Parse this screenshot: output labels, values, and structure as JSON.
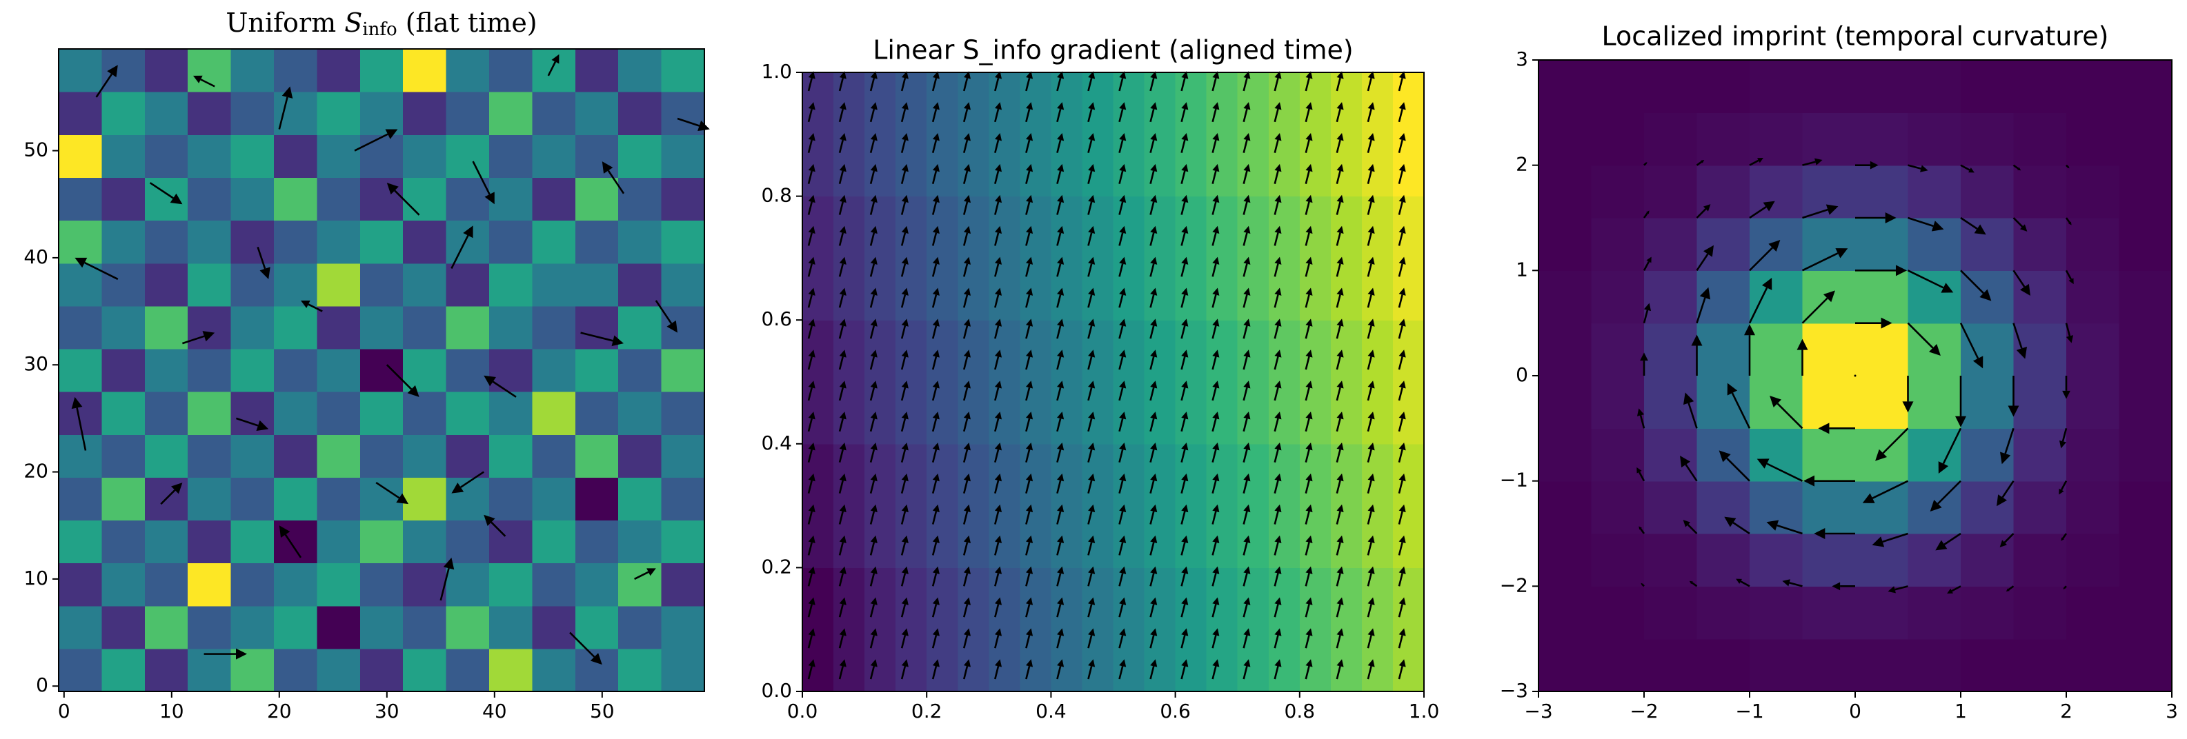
{
  "chart_data": [
    {
      "type": "heatmap",
      "colormap": "viridis",
      "origin": "lower",
      "title": {
        "text": "Uniform ",
        "math": "S",
        "subscript": "info",
        "after": " (flat time)"
      },
      "xlim": [
        -0.5,
        59.5
      ],
      "ylim": [
        -0.5,
        59.5
      ],
      "xticks": [
        0,
        10,
        20,
        30,
        40,
        50
      ],
      "yticks": [
        0,
        10,
        20,
        30,
        40,
        50
      ],
      "z": [
        [
          0.4,
          0.6,
          0.3,
          0.5,
          0.7,
          0.4,
          0.5,
          0.3,
          0.6,
          0.4,
          0.8,
          0.5,
          0.4,
          0.6,
          0.5
        ],
        [
          0.5,
          0.3,
          0.7,
          0.4,
          0.5,
          0.6,
          0.2,
          0.5,
          0.4,
          0.7,
          0.5,
          0.3,
          0.6,
          0.4,
          0.5
        ],
        [
          0.3,
          0.5,
          0.4,
          0.9,
          0.4,
          0.5,
          0.6,
          0.4,
          0.3,
          0.5,
          0.6,
          0.4,
          0.5,
          0.7,
          0.3
        ],
        [
          0.6,
          0.4,
          0.5,
          0.3,
          0.6,
          0.2,
          0.5,
          0.7,
          0.5,
          0.4,
          0.3,
          0.6,
          0.4,
          0.5,
          0.6
        ],
        [
          0.4,
          0.7,
          0.3,
          0.5,
          0.4,
          0.6,
          0.4,
          0.5,
          0.8,
          0.5,
          0.4,
          0.5,
          0.2,
          0.6,
          0.4
        ],
        [
          0.5,
          0.4,
          0.6,
          0.4,
          0.5,
          0.3,
          0.7,
          0.4,
          0.5,
          0.3,
          0.6,
          0.4,
          0.7,
          0.3,
          0.5
        ],
        [
          0.3,
          0.6,
          0.4,
          0.7,
          0.3,
          0.5,
          0.4,
          0.6,
          0.4,
          0.6,
          0.5,
          0.8,
          0.4,
          0.5,
          0.4
        ],
        [
          0.6,
          0.3,
          0.5,
          0.4,
          0.6,
          0.4,
          0.5,
          0.2,
          0.6,
          0.4,
          0.3,
          0.5,
          0.6,
          0.4,
          0.7
        ],
        [
          0.4,
          0.5,
          0.7,
          0.3,
          0.5,
          0.6,
          0.3,
          0.5,
          0.4,
          0.7,
          0.5,
          0.4,
          0.3,
          0.6,
          0.4
        ],
        [
          0.5,
          0.4,
          0.3,
          0.6,
          0.4,
          0.5,
          0.8,
          0.4,
          0.5,
          0.3,
          0.6,
          0.5,
          0.5,
          0.3,
          0.5
        ],
        [
          0.7,
          0.5,
          0.4,
          0.5,
          0.3,
          0.4,
          0.5,
          0.6,
          0.3,
          0.5,
          0.4,
          0.6,
          0.4,
          0.5,
          0.6
        ],
        [
          0.4,
          0.3,
          0.6,
          0.4,
          0.5,
          0.7,
          0.4,
          0.3,
          0.6,
          0.4,
          0.5,
          0.3,
          0.7,
          0.4,
          0.3
        ],
        [
          0.9,
          0.5,
          0.4,
          0.5,
          0.6,
          0.3,
          0.5,
          0.4,
          0.5,
          0.6,
          0.4,
          0.5,
          0.4,
          0.6,
          0.5
        ],
        [
          0.3,
          0.6,
          0.5,
          0.3,
          0.4,
          0.5,
          0.6,
          0.5,
          0.3,
          0.4,
          0.7,
          0.4,
          0.5,
          0.3,
          0.4
        ],
        [
          0.5,
          0.4,
          0.3,
          0.7,
          0.5,
          0.4,
          0.3,
          0.6,
          0.9,
          0.5,
          0.4,
          0.6,
          0.3,
          0.5,
          0.6
        ]
      ],
      "quiver": {
        "color": "#000000",
        "x": [
          3,
          8,
          14,
          20,
          27,
          33,
          38,
          45,
          52,
          57,
          5,
          11,
          18,
          24,
          30,
          36,
          42,
          48,
          55,
          2,
          9,
          16,
          22,
          29,
          35,
          41,
          47,
          53,
          13,
          39
        ],
        "y": [
          55,
          47,
          56,
          52,
          50,
          44,
          49,
          57,
          46,
          53,
          38,
          32,
          41,
          35,
          30,
          39,
          27,
          33,
          36,
          22,
          17,
          25,
          12,
          19,
          8,
          14,
          5,
          10,
          3,
          20
        ],
        "u": [
          2,
          3,
          -2,
          1,
          4,
          -3,
          2,
          1,
          -2,
          3,
          -4,
          3,
          1,
          -2,
          3,
          2,
          -3,
          4,
          2,
          -1,
          2,
          3,
          -2,
          3,
          1,
          -2,
          3,
          2,
          4,
          -3
        ],
        "v": [
          3,
          -2,
          1,
          4,
          2,
          3,
          -4,
          2,
          3,
          -1,
          2,
          1,
          -3,
          1,
          -3,
          4,
          2,
          -1,
          -3,
          5,
          2,
          -1,
          3,
          -2,
          4,
          2,
          -3,
          1,
          0,
          -2
        ]
      }
    },
    {
      "type": "heatmap",
      "colormap": "viridis",
      "origin": "lower",
      "title": "Linear S_info gradient (aligned time)",
      "xlim": [
        0,
        1
      ],
      "ylim": [
        0,
        1
      ],
      "xticks": [
        {
          "value": 0,
          "label": "0.0"
        },
        0.2,
        0.4,
        0.6,
        0.8,
        {
          "value": 1,
          "label": "1.0"
        }
      ],
      "yticks": [
        {
          "value": 0,
          "label": "0.0"
        },
        0.2,
        0.4,
        0.6,
        0.8,
        {
          "value": 1,
          "label": "1.0"
        }
      ],
      "z": [
        [
          0.05,
          0.1,
          0.15,
          0.2,
          0.25,
          0.3,
          0.35,
          0.4,
          0.45,
          0.5,
          0.55,
          0.6,
          0.65,
          0.7,
          0.75,
          0.8,
          0.85,
          0.9,
          0.95,
          1.0
        ],
        [
          0.09,
          0.14,
          0.19,
          0.24,
          0.29,
          0.34,
          0.39,
          0.44,
          0.49,
          0.54,
          0.59,
          0.64,
          0.69,
          0.74,
          0.79,
          0.84,
          0.89,
          0.94,
          0.99,
          1.04
        ],
        [
          0.13,
          0.18,
          0.23,
          0.28,
          0.33,
          0.38,
          0.43,
          0.48,
          0.53,
          0.58,
          0.63,
          0.68,
          0.73,
          0.78,
          0.83,
          0.88,
          0.93,
          0.98,
          1.03,
          1.08
        ],
        [
          0.17,
          0.22,
          0.27,
          0.32,
          0.37,
          0.42,
          0.47,
          0.52,
          0.57,
          0.62,
          0.67,
          0.72,
          0.77,
          0.82,
          0.87,
          0.92,
          0.97,
          1.02,
          1.07,
          1.12
        ],
        [
          0.21,
          0.26,
          0.31,
          0.36,
          0.41,
          0.46,
          0.51,
          0.56,
          0.61,
          0.66,
          0.71,
          0.76,
          0.81,
          0.86,
          0.91,
          0.96,
          1.01,
          1.06,
          1.11,
          1.16
        ]
      ],
      "quiver": {
        "color": "#000000",
        "x": [
          0.01,
          0.06,
          0.11,
          0.16,
          0.21,
          0.26,
          0.31,
          0.36,
          0.41,
          0.46,
          0.51,
          0.56,
          0.61,
          0.66,
          0.71,
          0.76,
          0.81,
          0.86,
          0.91,
          0.96
        ],
        "y": [
          0.02,
          0.07,
          0.12,
          0.17,
          0.22,
          0.27,
          0.32,
          0.37,
          0.42,
          0.47,
          0.52,
          0.57,
          0.62,
          0.67,
          0.72,
          0.77,
          0.82,
          0.87,
          0.92,
          0.97
        ],
        "u": 0.008,
        "v": 0.032
      }
    },
    {
      "type": "heatmap",
      "colormap": "viridis",
      "origin": "lower",
      "title": "Localized imprint (temporal curvature)",
      "xlim": [
        -3,
        3
      ],
      "ylim": [
        -3,
        3
      ],
      "xticks": [
        {
          "value": -3,
          "label": "−3"
        },
        {
          "value": -2,
          "label": "−2"
        },
        {
          "value": -1,
          "label": "−1"
        },
        0,
        1,
        2,
        3
      ],
      "yticks": [
        {
          "value": -3,
          "label": "−3"
        },
        {
          "value": -2,
          "label": "−2"
        },
        {
          "value": -1,
          "label": "−1"
        },
        0,
        1,
        2,
        3
      ],
      "z": [
        [
          0,
          0,
          0,
          0,
          0.01,
          0.01,
          0.01,
          0.01,
          0,
          0,
          0,
          0
        ],
        [
          0,
          0,
          0.01,
          0.02,
          0.03,
          0.04,
          0.04,
          0.03,
          0.02,
          0.01,
          0,
          0
        ],
        [
          0,
          0.01,
          0.02,
          0.06,
          0.11,
          0.15,
          0.15,
          0.11,
          0.06,
          0.02,
          0.01,
          0
        ],
        [
          0,
          0.02,
          0.06,
          0.15,
          0.27,
          0.37,
          0.37,
          0.27,
          0.15,
          0.06,
          0.02,
          0
        ],
        [
          0.01,
          0.03,
          0.11,
          0.27,
          0.5,
          0.68,
          0.68,
          0.5,
          0.27,
          0.11,
          0.03,
          0.01
        ],
        [
          0.01,
          0.04,
          0.15,
          0.37,
          0.68,
          0.93,
          0.93,
          0.68,
          0.37,
          0.15,
          0.04,
          0.01
        ],
        [
          0.01,
          0.04,
          0.15,
          0.37,
          0.68,
          0.93,
          0.93,
          0.68,
          0.37,
          0.15,
          0.04,
          0.01
        ],
        [
          0.01,
          0.03,
          0.11,
          0.27,
          0.5,
          0.68,
          0.68,
          0.5,
          0.27,
          0.11,
          0.03,
          0.01
        ],
        [
          0,
          0.02,
          0.06,
          0.15,
          0.27,
          0.37,
          0.37,
          0.27,
          0.15,
          0.06,
          0.02,
          0
        ],
        [
          0,
          0.01,
          0.02,
          0.06,
          0.11,
          0.15,
          0.15,
          0.11,
          0.06,
          0.02,
          0.01,
          0
        ],
        [
          0,
          0,
          0.01,
          0.02,
          0.03,
          0.04,
          0.04,
          0.03,
          0.02,
          0.01,
          0,
          0
        ],
        [
          0,
          0,
          0,
          0,
          0.01,
          0.01,
          0.01,
          0.01,
          0,
          0,
          0,
          0
        ]
      ],
      "quiver": {
        "color": "#000000",
        "x": [
          -2,
          -1.5,
          -1,
          -0.5,
          0,
          0.5,
          1,
          1.5,
          2
        ],
        "y": [
          -2,
          -1.5,
          -1,
          -0.5,
          0,
          0.5,
          1,
          1.5,
          2
        ],
        "u": [
          [
            -0.03,
            -0.07,
            -0.13,
            -0.19,
            -0.22,
            -0.19,
            -0.13,
            -0.07,
            -0.03
          ],
          [
            -0.05,
            -0.13,
            -0.24,
            -0.34,
            -0.39,
            -0.34,
            -0.24,
            -0.13,
            -0.05
          ],
          [
            -0.07,
            -0.16,
            -0.29,
            -0.43,
            -0.49,
            -0.43,
            -0.29,
            -0.16,
            -0.07
          ],
          [
            -0.05,
            -0.11,
            -0.21,
            -0.31,
            -0.35,
            -0.31,
            -0.21,
            -0.11,
            -0.05
          ],
          [
            0,
            0,
            0,
            0,
            0,
            0,
            0,
            0,
            0
          ],
          [
            0.05,
            0.11,
            0.21,
            0.31,
            0.35,
            0.31,
            0.21,
            0.11,
            0.05
          ],
          [
            0.07,
            0.16,
            0.29,
            0.43,
            0.49,
            0.43,
            0.29,
            0.16,
            0.07
          ],
          [
            0.05,
            0.13,
            0.24,
            0.34,
            0.39,
            0.34,
            0.24,
            0.13,
            0.05
          ],
          [
            0.03,
            0.07,
            0.13,
            0.19,
            0.22,
            0.19,
            0.13,
            0.07,
            0.03
          ]
        ],
        "v": [
          [
            0.03,
            0.05,
            0.07,
            0.05,
            0,
            -0.05,
            -0.07,
            -0.05,
            -0.03
          ],
          [
            0.07,
            0.13,
            0.16,
            0.11,
            0,
            -0.11,
            -0.16,
            -0.13,
            -0.07
          ],
          [
            0.13,
            0.24,
            0.29,
            0.21,
            0,
            -0.21,
            -0.29,
            -0.24,
            -0.13
          ],
          [
            0.19,
            0.34,
            0.43,
            0.31,
            0,
            -0.31,
            -0.43,
            -0.34,
            -0.19
          ],
          [
            0.22,
            0.39,
            0.49,
            0.35,
            0,
            -0.35,
            -0.49,
            -0.39,
            -0.22
          ],
          [
            0.19,
            0.34,
            0.43,
            0.31,
            0,
            -0.31,
            -0.43,
            -0.34,
            -0.19
          ],
          [
            0.13,
            0.24,
            0.29,
            0.21,
            0,
            -0.21,
            -0.29,
            -0.24,
            -0.13
          ],
          [
            0.07,
            0.13,
            0.16,
            0.11,
            0,
            -0.11,
            -0.16,
            -0.13,
            -0.07
          ],
          [
            0.03,
            0.05,
            0.07,
            0.05,
            0,
            -0.05,
            -0.07,
            -0.05,
            -0.03
          ]
        ]
      }
    }
  ]
}
